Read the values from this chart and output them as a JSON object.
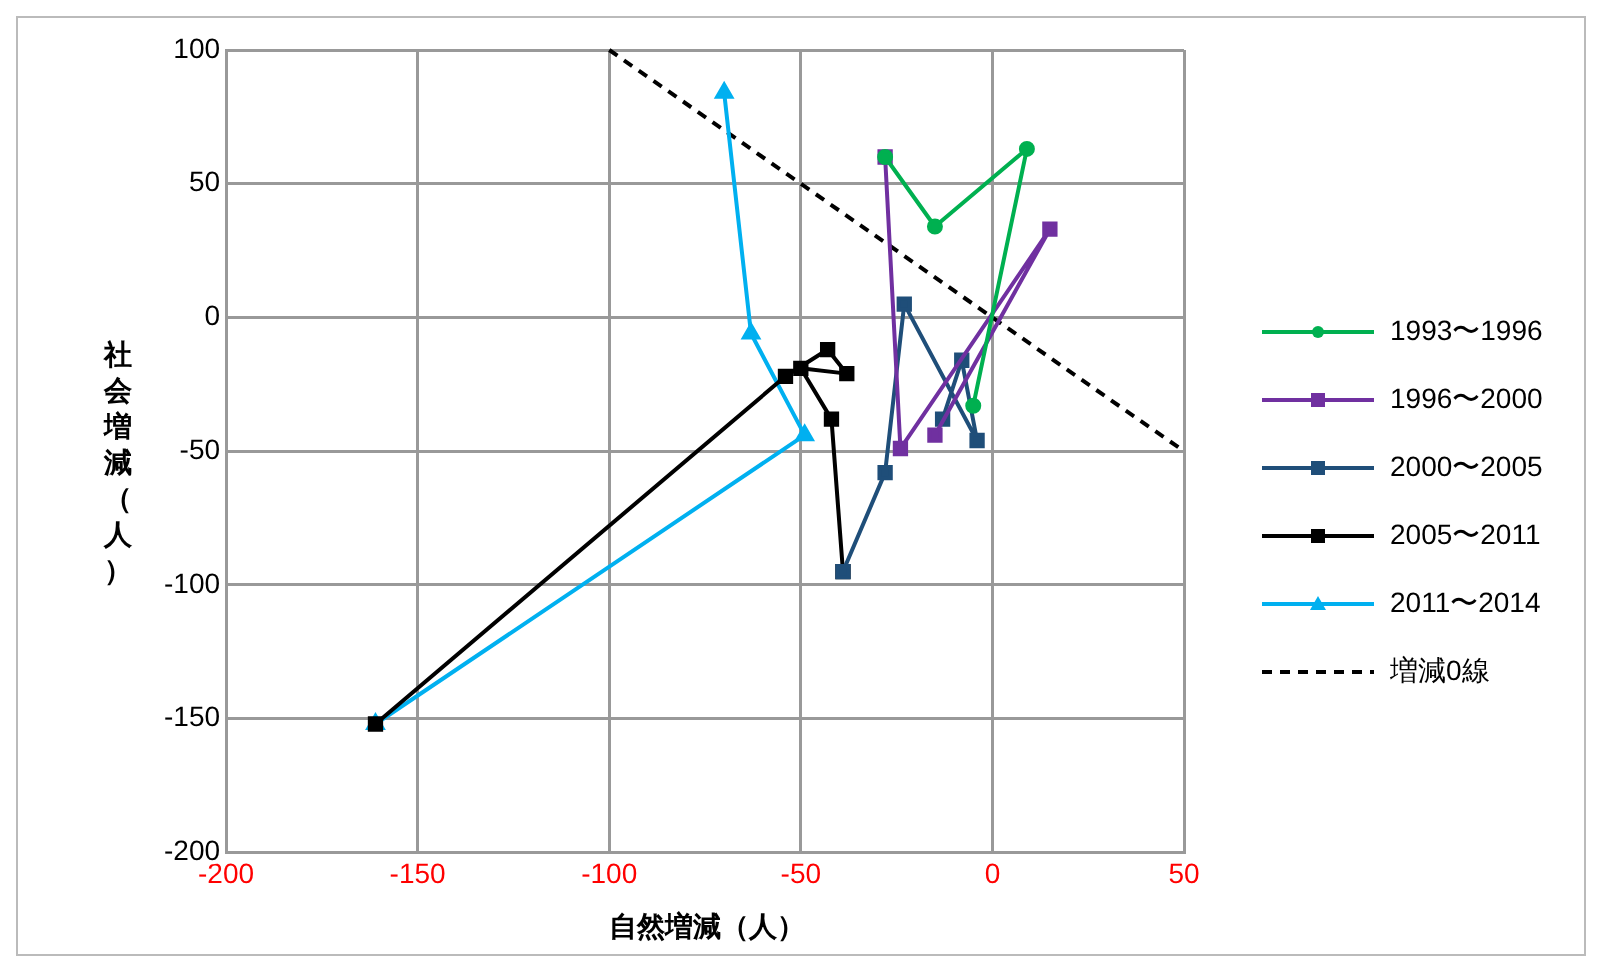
{
  "chart_data": {
    "type": "line",
    "xlabel": "自然増減（人）",
    "ylabel": "社会増減（人）",
    "xlim": [
      -200,
      50
    ],
    "xticks": [
      -200,
      -150,
      -100,
      -50,
      0,
      50
    ],
    "ylim": [
      -200,
      100
    ],
    "yticks": [
      -200,
      -150,
      -100,
      -50,
      0,
      50,
      100
    ],
    "grid": true,
    "legend": "right",
    "series": [
      {
        "name": "1993〜1996",
        "color": "#00b050",
        "marker": "circle",
        "x": [
          -5,
          9,
          -15,
          -28
        ],
        "values": [
          -33,
          63,
          34,
          60
        ]
      },
      {
        "name": "1996〜2000",
        "color": "#7030a0",
        "marker": "square",
        "x": [
          -28,
          -24,
          15,
          -15
        ],
        "values": [
          60,
          -49,
          33,
          -44
        ]
      },
      {
        "name": "2000〜2005",
        "color": "#1f4e79",
        "marker": "square",
        "x": [
          -13,
          -8,
          -4,
          -23,
          -28,
          -39
        ],
        "values": [
          -38,
          -16,
          -46,
          5,
          -58,
          -95
        ]
      },
      {
        "name": "2005〜2011",
        "color": "#000000",
        "marker": "square",
        "x": [
          -39,
          -42,
          -50,
          -38,
          -43,
          -54,
          -161
        ],
        "values": [
          -95,
          -38,
          -19,
          -21,
          -12,
          -22,
          -152
        ]
      },
      {
        "name": "2011〜2014",
        "color": "#00b0f0",
        "marker": "triangle",
        "x": [
          -161,
          -49,
          -63,
          -70
        ],
        "values": [
          -152,
          -44,
          -6,
          84
        ]
      },
      {
        "name": "増減0線",
        "color": "#000000",
        "marker": "none",
        "line_style": "dashed",
        "x": [
          -100,
          50
        ],
        "values": [
          100,
          -50
        ]
      }
    ]
  }
}
